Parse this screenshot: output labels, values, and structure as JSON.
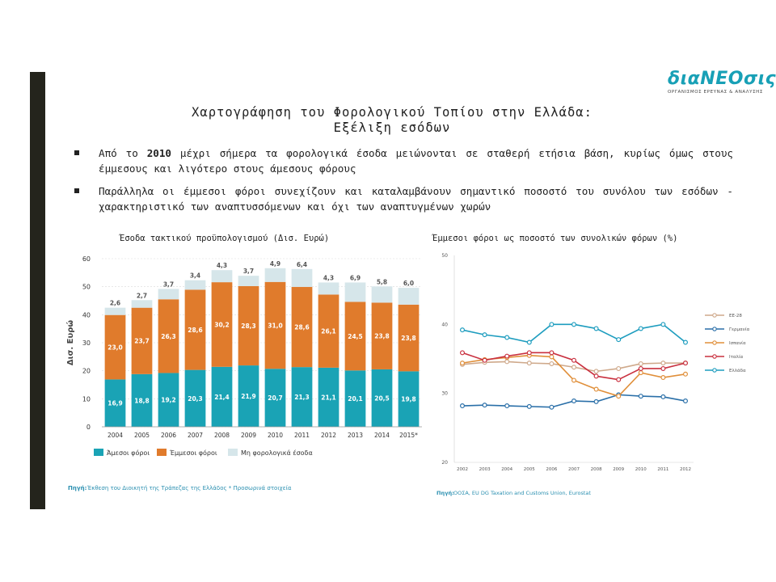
{
  "logo": {
    "name": "διαNEOσις",
    "tagline": "ΟΡΓΑΝΙΣΜΟΣ ΕΡΕΥΝΑΣ & ΑΝΑΛΥΣΗΣ"
  },
  "title": {
    "line1": "Χαρτογράφηση του Φορολογικού Τοπίου στην Ελλάδα:",
    "line2": "Εξέλιξη εσόδων"
  },
  "bullets": [
    {
      "pre": "Από το ",
      "highlight": "2010",
      "post": " μέχρι σήμερα τα φορολογικά έσοδα μειώνονται σε σταθερή ετήσια βάση, κυρίως όμως στους έμμεσους και λιγότερο στους άμεσους φόρους"
    },
    {
      "pre": "Παράλληλα οι έμμεσοι φόροι συνεχίζουν και καταλαμβάνουν σημαντικό ποσοστό του συνόλου των εσόδων  - χαρακτηριστικό των αναπτυσσόμενων και όχι των αναπτυγμένων χωρών",
      "highlight": "",
      "post": ""
    }
  ],
  "colors": {
    "direct": "#1aa3b5",
    "indirect": "#e07b2c",
    "nontax": "#d6e6ea",
    "eu28": "#cfa98b",
    "germany": "#2a6fa8",
    "spain": "#e08f3a",
    "italy": "#c9303f",
    "greece": "#1e9dbf"
  },
  "chart_data": [
    {
      "type": "bar",
      "stacked": true,
      "title": "Έσοδα τακτικού προϋπολογισμού (Δισ. Ευρώ)",
      "ylabel": "Δισ. Ευρώ",
      "ylim": [
        0,
        60
      ],
      "yticks": [
        0,
        10,
        20,
        30,
        40,
        50,
        60
      ],
      "categories": [
        "2004",
        "2005",
        "2006",
        "2007",
        "2008",
        "2009",
        "2010",
        "2011",
        "2012",
        "2013",
        "2014",
        "2015*"
      ],
      "series": [
        {
          "name": "Άμεσοι φόροι",
          "values": [
            16.9,
            18.8,
            19.2,
            20.3,
            21.4,
            21.9,
            20.7,
            21.3,
            21.1,
            20.1,
            20.5,
            19.8
          ]
        },
        {
          "name": "Έμμεσοι φόροι",
          "values": [
            23.0,
            23.7,
            26.3,
            28.6,
            30.2,
            28.3,
            31.0,
            28.6,
            26.1,
            24.5,
            23.8,
            23.8
          ]
        },
        {
          "name": "Μη φορολογικά έσοδα",
          "values": [
            2.6,
            2.7,
            3.7,
            3.4,
            4.3,
            3.7,
            4.9,
            6.4,
            4.3,
            6.9,
            5.8,
            6.0
          ]
        }
      ],
      "legend_position": "bottom",
      "source": "Έκθεση του Διοικητή της Τράπεζας της Ελλάδος * Προσωρινά στοιχεία",
      "source_label": "Πηγή:"
    },
    {
      "type": "line",
      "title": "Έμμεσοι φόροι ως ποσοστό των συνολικών φόρων (%)",
      "ylim": [
        20,
        50
      ],
      "yticks": [
        20,
        30,
        40,
        50
      ],
      "x": [
        "2002",
        "2003",
        "2004",
        "2005",
        "2006",
        "2007",
        "2008",
        "2009",
        "2010",
        "2011",
        "2012"
      ],
      "series": [
        {
          "name": "ΕΕ-28",
          "values": [
            34.2,
            34.5,
            34.6,
            34.4,
            34.3,
            33.8,
            33.2,
            33.6,
            34.3,
            34.4,
            34.4
          ]
        },
        {
          "name": "Γερμανία",
          "values": [
            28.2,
            28.3,
            28.2,
            28.1,
            28.0,
            28.9,
            28.8,
            29.8,
            29.6,
            29.5,
            28.9
          ]
        },
        {
          "name": "Ισπανία",
          "values": [
            34.4,
            34.9,
            35.2,
            35.5,
            35.3,
            31.9,
            30.6,
            29.6,
            33.0,
            32.3,
            32.8
          ]
        },
        {
          "name": "Ιταλία",
          "values": [
            35.9,
            34.8,
            35.4,
            35.9,
            35.9,
            34.8,
            32.5,
            32.0,
            33.6,
            33.6,
            34.4
          ]
        },
        {
          "name": "Ελλάδα",
          "values": [
            39.2,
            38.5,
            38.1,
            37.4,
            40.0,
            40.0,
            39.4,
            37.8,
            39.4,
            40.0,
            37.4
          ]
        }
      ],
      "legend_position": "right",
      "source": "ΟΟΣΑ, EU DG Taxation and Customs Union, Eurostat",
      "source_label": "Πηγή:"
    }
  ]
}
